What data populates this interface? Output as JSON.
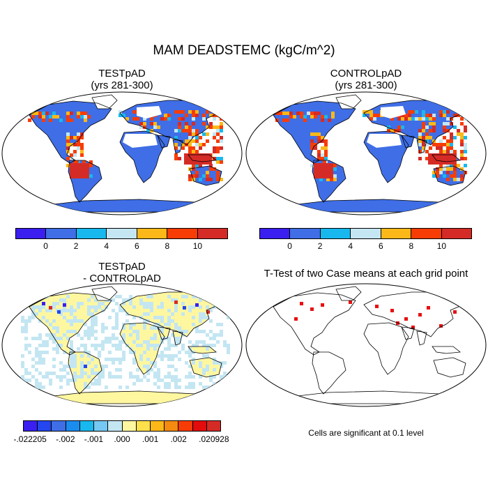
{
  "title": "MAM DEADSTEMC (kgC/m^2)",
  "panels": {
    "test": {
      "title_line1": "TESTpAD",
      "title_line2": "(yrs 281-300)"
    },
    "control": {
      "title_line1": "CONTROLpAD",
      "title_line2": "(yrs 281-300)"
    },
    "diff": {
      "title_line1": "TESTpAD",
      "title_line2": "- CONTROLpAD"
    },
    "ttest": {
      "title": "T-Test of two Case means at each grid point",
      "note": "Cells are significant at 0.1 level"
    }
  },
  "colorbars": {
    "top": {
      "colors": [
        "#3a1ff0",
        "#3f6ee6",
        "#18b8ee",
        "#c3e6f2",
        "#fbb818",
        "#f83c06",
        "#d52b26"
      ],
      "labels": [
        "0",
        "2",
        "4",
        "6",
        "8",
        "10"
      ]
    },
    "diff": {
      "colors": [
        "#3a1ff0",
        "#2346ee",
        "#3f6ee6",
        "#1a8cf0",
        "#18b8ee",
        "#74c8f2",
        "#c3e6f2",
        "#fff7a0",
        "#fde04c",
        "#fbb818",
        "#f58a10",
        "#f83c06",
        "#e30c0c",
        "#d52b26"
      ],
      "labels": [
        "-.022205",
        "-.002",
        "-.001",
        ".000",
        ".001",
        ".002",
        ".020928"
      ]
    }
  },
  "chart_data": {
    "type": "heatmap",
    "variable": "MAM DEADSTEMC",
    "units": "kgC/m^2",
    "top_color_levels": [
      0,
      2,
      4,
      6,
      8,
      10
    ],
    "diff_color_levels": [
      -0.022205,
      -0.002,
      -0.001,
      0.0,
      0.001,
      0.002,
      0.020928
    ],
    "panels": [
      "TESTpAD",
      "CONTROLpAD",
      "TESTpAD - CONTROLpAD",
      "T-Test of two Case means at each grid point"
    ]
  }
}
